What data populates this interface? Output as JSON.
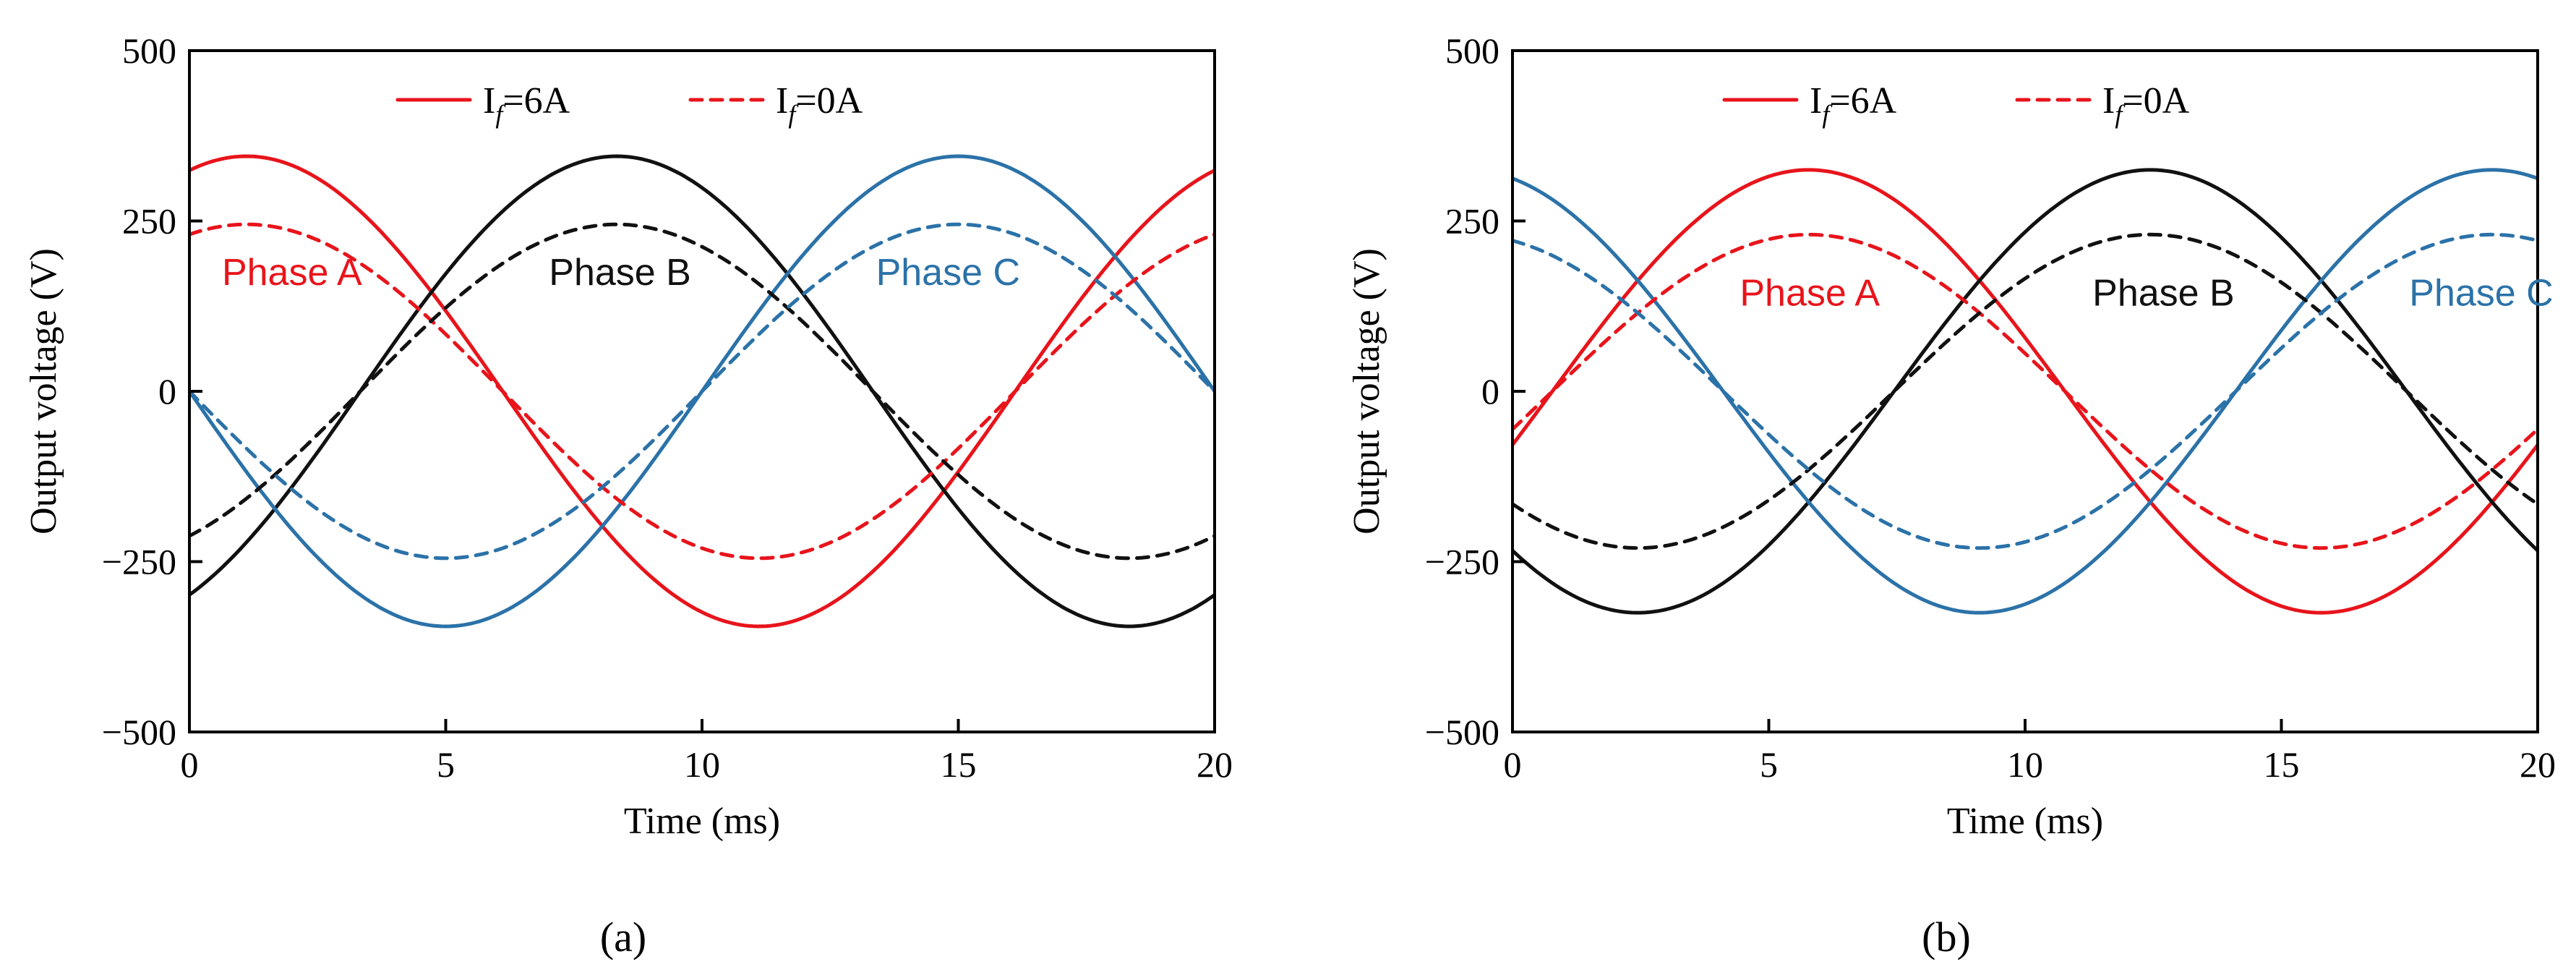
{
  "colors": {
    "A": "#e8141b",
    "B": "#111111",
    "C": "#2b72a8"
  },
  "legend": {
    "solid": {
      "prefix": "I",
      "subscript": "f",
      "suffix": "=6A"
    },
    "dashed": {
      "prefix": "I",
      "subscript": "f",
      "suffix": "=0A"
    }
  },
  "chart_data": [
    {
      "type": "line",
      "panel_label": "(a)",
      "xlabel": "Time (ms)",
      "ylabel": "Output voltage (V)",
      "xlim": [
        0,
        20
      ],
      "ylim": [
        -500,
        500
      ],
      "xticks": [
        0,
        5,
        10,
        15,
        20
      ],
      "yticks": [
        -500,
        -250,
        0,
        250,
        500
      ],
      "xtick_labels": [
        "0",
        "5",
        "10",
        "15",
        "20"
      ],
      "ytick_labels": [
        "−500",
        "−250",
        "0",
        "250",
        "500"
      ],
      "phase_labels": [
        {
          "phase": "A",
          "text": "Phase A",
          "x": 2.0,
          "y": 175
        },
        {
          "phase": "B",
          "text": "Phase B",
          "x": 8.4,
          "y": 175
        },
        {
          "phase": "C",
          "text": "Phase C",
          "x": 14.8,
          "y": 175
        }
      ],
      "series": [
        {
          "name": "Phase A If=6A",
          "phase": "A",
          "style": "solid",
          "amplitude": 345,
          "phase_deg": 70,
          "x_start": 0,
          "x_end": 20
        },
        {
          "name": "Phase B If=6A",
          "phase": "B",
          "style": "solid",
          "amplitude": 345,
          "phase_deg": -60,
          "x_start": 0,
          "x_end": 20
        },
        {
          "name": "Phase C If=6A",
          "phase": "C",
          "style": "solid",
          "amplitude": 345,
          "phase_deg": 180,
          "x_start": 0,
          "x_end": 20
        },
        {
          "name": "Phase A If=0A",
          "phase": "A",
          "style": "dashed",
          "amplitude": 245,
          "phase_deg": 70,
          "x_start": 0,
          "x_end": 20
        },
        {
          "name": "Phase B If=0A",
          "phase": "B",
          "style": "dashed",
          "amplitude": 245,
          "phase_deg": -60,
          "x_start": 0,
          "x_end": 20
        },
        {
          "name": "Phase C If=0A",
          "phase": "C",
          "style": "dashed",
          "amplitude": 245,
          "phase_deg": 180,
          "x_start": 0,
          "x_end": 20
        }
      ]
    },
    {
      "type": "line",
      "panel_label": "(b)",
      "xlabel": "Time (ms)",
      "ylabel": "Output voltage (V)",
      "xlim": [
        0,
        20
      ],
      "ylim": [
        -500,
        500
      ],
      "xticks": [
        0,
        5,
        10,
        15,
        20
      ],
      "yticks": [
        -500,
        -250,
        0,
        250,
        500
      ],
      "xtick_labels": [
        "0",
        "5",
        "10",
        "15",
        "20"
      ],
      "ytick_labels": [
        "−500",
        "−250",
        "0",
        "250",
        "500"
      ],
      "phase_labels": [
        {
          "phase": "A",
          "text": "Phase A",
          "x": 5.8,
          "y": 145
        },
        {
          "phase": "B",
          "text": "Phase B",
          "x": 12.7,
          "y": 145
        },
        {
          "phase": "C",
          "text": "Phase C",
          "x": 18.9,
          "y": 145
        }
      ],
      "series": [
        {
          "name": "Phase A If=6A",
          "phase": "A",
          "style": "solid",
          "amplitude": 325,
          "phase_deg": -14,
          "x_start": 0,
          "x_end": 20
        },
        {
          "name": "Phase B If=6A",
          "phase": "B",
          "style": "solid",
          "amplitude": 325,
          "phase_deg": -134,
          "x_start": 0,
          "x_end": 20
        },
        {
          "name": "Phase C If=6A",
          "phase": "C",
          "style": "solid",
          "amplitude": 325,
          "phase_deg": 106,
          "x_start": 0,
          "x_end": 20
        },
        {
          "name": "Phase A If=0A",
          "phase": "A",
          "style": "dashed",
          "amplitude": 230,
          "phase_deg": -14,
          "x_start": 0,
          "x_end": 20
        },
        {
          "name": "Phase B If=0A",
          "phase": "B",
          "style": "dashed",
          "amplitude": 230,
          "phase_deg": -134,
          "x_start": 0,
          "x_end": 20
        },
        {
          "name": "Phase C If=0A",
          "phase": "C",
          "style": "dashed",
          "amplitude": 230,
          "phase_deg": 106,
          "x_start": 0,
          "x_end": 20
        }
      ]
    }
  ]
}
